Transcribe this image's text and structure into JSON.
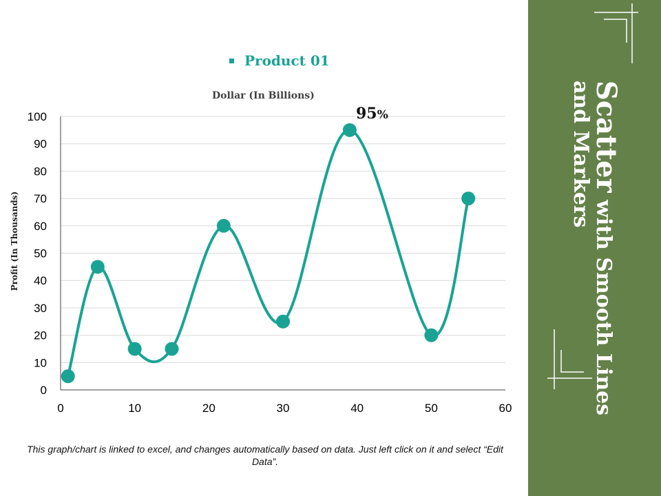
{
  "legend": {
    "label": "Product 01"
  },
  "annotation": {
    "value": "95",
    "suffix": "%"
  },
  "caption": "This graph/chart is linked to excel, and changes automatically based on data. Just left click on it and select “Edit Data”.",
  "side_title": {
    "word_large": "Scatter",
    "line1_rest": " with Smooth Lines",
    "line2": "and Markers"
  },
  "colors": {
    "series": "#1aa394",
    "panel": "#64814a",
    "grid": "#d9d9d9",
    "axis": "#404040"
  },
  "chart_data": {
    "type": "scatter",
    "title": "Dollar (In Billions)",
    "xlabel": "",
    "ylabel": "Profit  (In Thousands)",
    "xlim": [
      0,
      60
    ],
    "ylim": [
      0,
      100
    ],
    "xticks": [
      0,
      10,
      20,
      30,
      40,
      50,
      60
    ],
    "yticks": [
      0,
      10,
      20,
      30,
      40,
      50,
      60,
      70,
      80,
      90,
      100
    ],
    "smooth": true,
    "markers": true,
    "series": [
      {
        "name": "Product 01",
        "x": [
          1,
          5,
          10,
          15,
          22,
          30,
          39,
          50,
          55
        ],
        "y": [
          5,
          45,
          15,
          15,
          60,
          25,
          95,
          20,
          70
        ]
      }
    ]
  }
}
